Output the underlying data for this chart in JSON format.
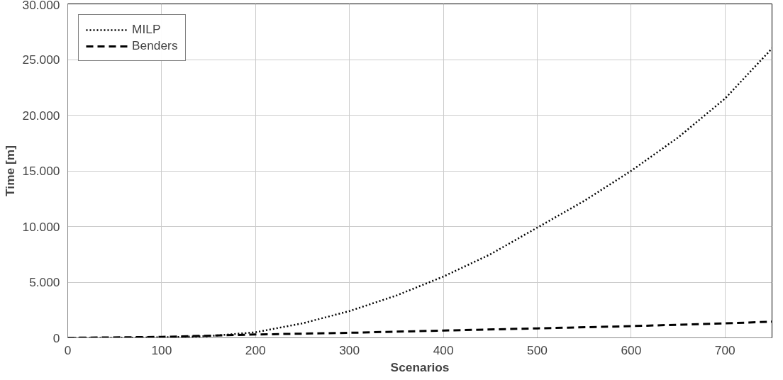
{
  "chart_data": {
    "type": "line",
    "xlabel": "Scenarios",
    "ylabel": "Time [m]",
    "xlim": [
      0,
      750
    ],
    "xticks": [
      0,
      100,
      200,
      300,
      400,
      500,
      600,
      700
    ],
    "ylim": [
      0,
      30000
    ],
    "yticks": [
      0,
      {
        "value": 5000,
        "label": "5.000"
      },
      {
        "value": 10000,
        "label": "10.000"
      },
      {
        "value": 15000,
        "label": "15.000"
      },
      {
        "value": 20000,
        "label": "20.000"
      },
      {
        "value": 25000,
        "label": "25.000"
      },
      {
        "value": 30000,
        "label": "30.000"
      }
    ],
    "grid": true,
    "legend": "top left",
    "marker": "none",
    "series": [
      {
        "name": "MILP",
        "color": "#000000",
        "line_style": "dotted",
        "x": [
          0,
          50,
          100,
          150,
          200,
          250,
          300,
          350,
          400,
          450,
          500,
          550,
          600,
          650,
          700,
          750
        ],
        "values": [
          0,
          0,
          50,
          150,
          500,
          1300,
          2400,
          3800,
          5500,
          7500,
          9900,
          12300,
          15000,
          18000,
          21500,
          26000
        ]
      },
      {
        "name": "Benders",
        "color": "#000000",
        "line_style": "dashed",
        "x": [
          0,
          100,
          200,
          300,
          400,
          500,
          600,
          700,
          750
        ],
        "values": [
          0,
          80,
          300,
          450,
          650,
          850,
          1050,
          1300,
          1450
        ]
      }
    ]
  }
}
